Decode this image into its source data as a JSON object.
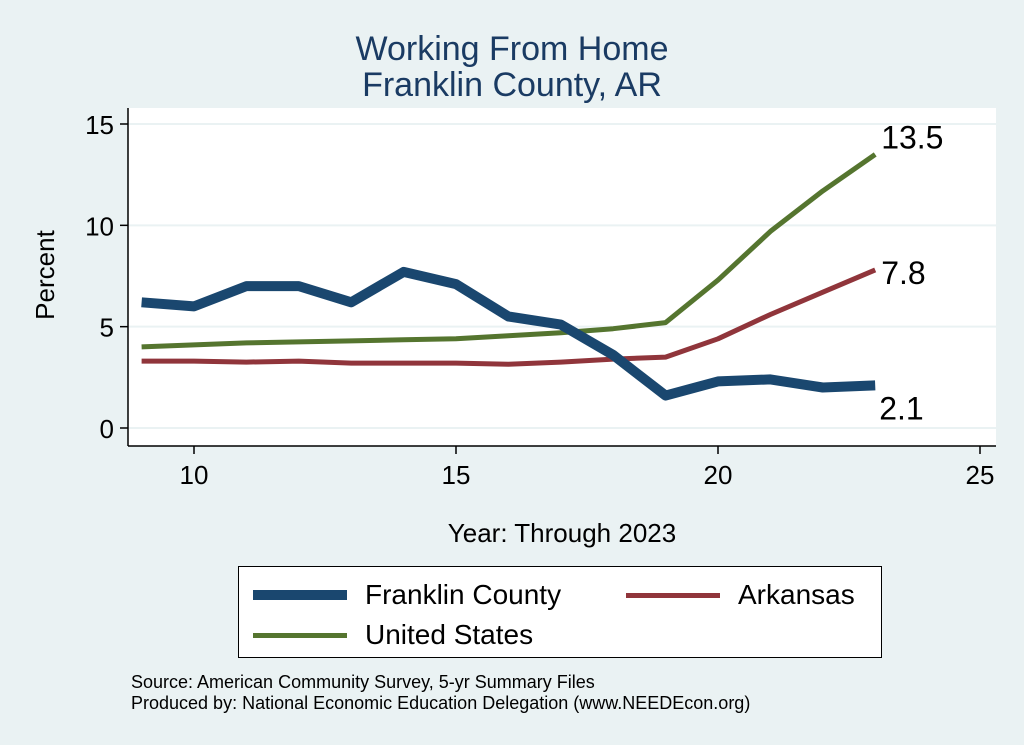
{
  "chart_data": {
    "type": "line",
    "title": "Working From Home",
    "subtitle": "Franklin County, AR",
    "xlabel": "Year: Through 2023",
    "ylabel": "Percent",
    "xlim": [
      9,
      25
    ],
    "ylim": [
      0,
      15
    ],
    "xticks": [
      "10",
      "15",
      "20",
      "25"
    ],
    "yticks": [
      "0",
      "5",
      "10",
      "15"
    ],
    "grid": true,
    "legend_position": "bottom",
    "x": [
      9,
      10,
      11,
      12,
      13,
      14,
      15,
      16,
      17,
      18,
      19,
      20,
      21,
      22,
      23
    ],
    "series": [
      {
        "name": "Franklin County",
        "color": "#1a476f",
        "values": [
          6.2,
          6.0,
          7.0,
          7.0,
          6.2,
          7.7,
          7.1,
          5.5,
          5.1,
          3.6,
          1.6,
          2.3,
          2.4,
          2.0,
          2.1
        ],
        "end_label": "2.1"
      },
      {
        "name": "Arkansas",
        "color": "#90353b",
        "values": [
          3.3,
          3.3,
          3.25,
          3.3,
          3.2,
          3.2,
          3.2,
          3.15,
          3.25,
          3.4,
          3.5,
          4.4,
          5.6,
          6.7,
          7.8
        ],
        "end_label": "7.8"
      },
      {
        "name": "United States",
        "color": "#55752f",
        "values": [
          4.0,
          4.1,
          4.2,
          4.25,
          4.3,
          4.35,
          4.4,
          4.55,
          4.7,
          4.9,
          5.2,
          7.3,
          9.7,
          11.7,
          13.5
        ],
        "end_label": "13.5"
      }
    ]
  },
  "source_note": "Source: American Community Survey, 5-yr Summary Files",
  "producer_note": "Produced by: National Economic Education Delegation (www.NEEDEcon.org)"
}
